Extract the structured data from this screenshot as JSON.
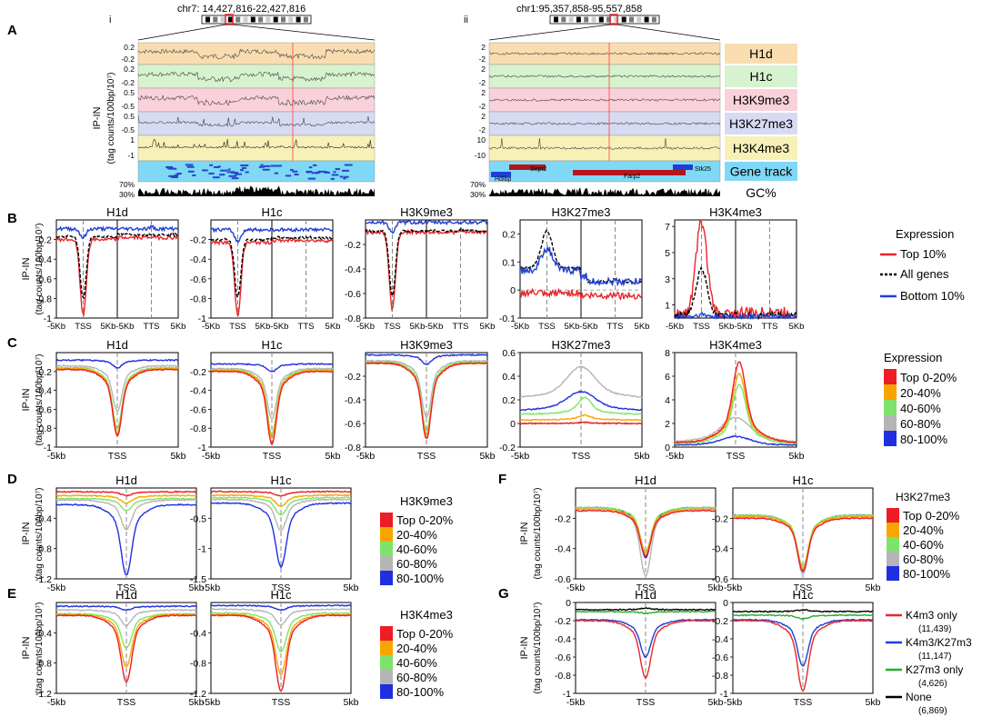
{
  "panel_letters": [
    "A",
    "B",
    "C",
    "D",
    "E",
    "F",
    "G"
  ],
  "panel_a": {
    "sub_i": "i",
    "sub_ii": "ii",
    "coord_i": "chr7: 14,427,816-22,427,816",
    "coord_ii": "chr1:95,357,858-95,557,858",
    "ylabel_line1": "IP-IN",
    "ylabel_line2": "(tag counts/100bp/10⁷)",
    "tracks": [
      {
        "name": "H1d",
        "color": "#f9ddb0",
        "ticks_i": [
          "0.2",
          "-0.2"
        ],
        "ticks_ii": [
          "2",
          "-2"
        ]
      },
      {
        "name": "H1c",
        "color": "#d6f2cf",
        "ticks_i": [
          "0.2",
          "-0.2"
        ],
        "ticks_ii": [
          "2",
          "-2"
        ]
      },
      {
        "name": "H3K9me3",
        "color": "#f9d1db",
        "ticks_i": [
          "0.5",
          "-0.5"
        ],
        "ticks_ii": [
          "2",
          "-2"
        ]
      },
      {
        "name": "H3K27me3",
        "color": "#d7daf2",
        "ticks_i": [
          "0.5",
          "-0.5"
        ],
        "ticks_ii": [
          "2",
          "-2"
        ]
      },
      {
        "name": "H3K4me3",
        "color": "#f7f1b8",
        "ticks_i": [
          "1",
          "-1"
        ],
        "ticks_ii": [
          "10",
          "-10"
        ]
      },
      {
        "name": "Gene track",
        "color": "#7fd8f5",
        "ticks_i": [],
        "ticks_ii": []
      }
    ],
    "gc_label": "GC%",
    "gc_ticks": [
      "70%",
      "30%"
    ],
    "genes_ii": [
      "Sept2",
      "Stk25",
      "Hdlbp",
      "Farp2"
    ]
  },
  "chart_data": [
    {
      "panel": "B",
      "type": "line",
      "xaxis": "metagene",
      "xticks": [
        "-5Kb",
        "TSS",
        "5Kb-5Kb",
        "TTS",
        "5Kb"
      ],
      "ylabel_line1": "IP-IN",
      "ylabel_line2": "(tag counts/100bp/10⁷)",
      "plots": [
        {
          "title": "H1d",
          "ylim": [
            -1,
            0
          ],
          "yticks": [
            "-0.2",
            "-0.4",
            "-0.6",
            "-0.8",
            "-1"
          ],
          "series": [
            {
              "name": "Top 10%",
              "color": "#e8262b",
              "dash": false,
              "baseline": -0.2,
              "dip": -0.97,
              "tts": -0.17,
              "after": -0.18,
              "noise": 0.006
            },
            {
              "name": "All genes",
              "color": "#000",
              "dash": true,
              "baseline": -0.17,
              "dip": -0.8,
              "tts": -0.14,
              "after": -0.15,
              "noise": 0.004
            },
            {
              "name": "Bottom 10%",
              "color": "#1f3fd4",
              "dash": false,
              "baseline": -0.09,
              "dip": -0.18,
              "tts": -0.07,
              "after": -0.09,
              "noise": 0.006
            }
          ]
        },
        {
          "title": "H1c",
          "ylim": [
            -1,
            0
          ],
          "yticks": [
            "-0.2",
            "-0.4",
            "-0.6",
            "-0.8",
            "-1"
          ],
          "series": [
            {
              "name": "Top 10%",
              "color": "#e8262b",
              "dash": false,
              "baseline": -0.23,
              "dip": -0.97,
              "tts": -0.2,
              "after": -0.21,
              "noise": 0.006
            },
            {
              "name": "All genes",
              "color": "#000",
              "dash": true,
              "baseline": -0.2,
              "dip": -0.8,
              "tts": -0.18,
              "after": -0.18,
              "noise": 0.004
            },
            {
              "name": "Bottom 10%",
              "color": "#1f3fd4",
              "dash": false,
              "baseline": -0.1,
              "dip": -0.22,
              "tts": -0.09,
              "after": -0.1,
              "noise": 0.006
            }
          ]
        },
        {
          "title": "H3K9me3",
          "ylim": [
            -0.8,
            0
          ],
          "yticks": [
            "-0.2",
            "-0.4",
            "-0.6",
            "-0.8"
          ],
          "series": [
            {
              "name": "Top 10%",
              "color": "#e8262b",
              "dash": false,
              "baseline": -0.1,
              "dip": -0.73,
              "tts": -0.09,
              "after": -0.1,
              "noise": 0.006
            },
            {
              "name": "All genes",
              "color": "#000",
              "dash": true,
              "baseline": -0.09,
              "dip": -0.62,
              "tts": -0.08,
              "after": -0.09,
              "noise": 0.004
            },
            {
              "name": "Bottom 10%",
              "color": "#1f3fd4",
              "dash": false,
              "baseline": -0.02,
              "dip": -0.1,
              "tts": -0.02,
              "after": -0.02,
              "noise": 0.006
            }
          ]
        },
        {
          "title": "H3K27me3",
          "ylim": [
            -0.1,
            0.25
          ],
          "yticks": [
            "0.2",
            "0.1",
            "0",
            "-0.1"
          ],
          "zero": true,
          "series": [
            {
              "name": "Top 10%",
              "color": "#e8262b",
              "dash": false,
              "baseline": -0.01,
              "dip": -0.02,
              "tts": -0.01,
              "after": -0.02,
              "noise": 0.012
            },
            {
              "name": "All genes",
              "color": "#000",
              "dash": true,
              "baseline": 0.08,
              "dip": 0.21,
              "tts": 0.04,
              "after": 0.03,
              "noise": 0.004,
              "peak": true
            },
            {
              "name": "Bottom 10%",
              "color": "#1f3fd4",
              "dash": false,
              "baseline": 0.07,
              "dip": 0.15,
              "tts": 0.03,
              "after": 0.03,
              "noise": 0.012,
              "peak": true
            }
          ]
        },
        {
          "title": "H3K4me3",
          "ylim": [
            0,
            7.5
          ],
          "yticks": [
            "7",
            "5",
            "3",
            "1"
          ],
          "series": [
            {
              "name": "Top 10%",
              "color": "#e8262b",
              "dash": false,
              "baseline": 0.3,
              "dip": 7.4,
              "tts": 0.6,
              "after": 0.4,
              "noise": 0.02,
              "peak": true
            },
            {
              "name": "All genes",
              "color": "#000",
              "dash": true,
              "baseline": 0.2,
              "dip": 3.8,
              "tts": 0.3,
              "after": 0.2,
              "noise": 0.01,
              "peak": true
            },
            {
              "name": "Bottom 10%",
              "color": "#1f3fd4",
              "dash": false,
              "baseline": 0.08,
              "dip": 0.25,
              "tts": 0.1,
              "after": 0.1,
              "noise": 0.01,
              "peak": true
            }
          ]
        }
      ],
      "legend": {
        "title": "Expression",
        "items": [
          {
            "label": "Top 10%",
            "color": "#e8262b",
            "dash": false
          },
          {
            "label": "All genes",
            "color": "#000",
            "dash": true
          },
          {
            "label": "Bottom 10%",
            "color": "#1f3fd4",
            "dash": false
          }
        ]
      }
    },
    {
      "panel": "C",
      "type": "line",
      "xaxis": "tss",
      "xticks": [
        "-5kb",
        "TSS",
        "5kb"
      ],
      "ylabel_line1": "IP-IN",
      "ylabel_line2": "(tag counts/100bp/10⁷)",
      "plots": [
        {
          "title": "H1d",
          "ylim": [
            -1,
            0
          ],
          "yticks": [
            "-0.2",
            "-0.4",
            "-0.6",
            "-0.8",
            "-1"
          ],
          "vals": [
            [
              -0.18,
              -0.88
            ],
            [
              -0.17,
              -0.85
            ],
            [
              -0.16,
              -0.8
            ],
            [
              -0.14,
              -0.62
            ],
            [
              -0.08,
              -0.16
            ]
          ]
        },
        {
          "title": "H1c",
          "ylim": [
            -1,
            0
          ],
          "yticks": [
            "-0.2",
            "-0.4",
            "-0.6",
            "-0.8",
            "-1"
          ],
          "vals": [
            [
              -0.2,
              -0.97
            ],
            [
              -0.19,
              -0.9
            ],
            [
              -0.18,
              -0.86
            ],
            [
              -0.17,
              -0.7
            ],
            [
              -0.12,
              -0.2
            ]
          ]
        },
        {
          "title": "H3K9me3",
          "ylim": [
            -0.8,
            0
          ],
          "yticks": [
            "-0.2",
            "-0.4",
            "-0.6",
            "-0.8"
          ],
          "vals": [
            [
              -0.09,
              -0.73
            ],
            [
              -0.09,
              -0.7
            ],
            [
              -0.08,
              -0.66
            ],
            [
              -0.07,
              -0.55
            ],
            [
              -0.02,
              -0.1
            ]
          ]
        },
        {
          "title": "H3K27me3",
          "ylim": [
            -0.2,
            0.6
          ],
          "yticks": [
            "0.6",
            "0.4",
            "0.2",
            "0",
            "-0.2"
          ],
          "zero": true,
          "peakmode": true,
          "vals": [
            [
              0.0,
              0.01
            ],
            [
              0.03,
              0.07
            ],
            [
              0.08,
              0.22
            ],
            [
              0.2,
              0.48
            ],
            [
              0.1,
              0.27
            ]
          ]
        },
        {
          "title": "H3K4me3",
          "ylim": [
            0,
            8
          ],
          "yticks": [
            "8",
            "6",
            "4",
            "2",
            "0"
          ],
          "peakmode": true,
          "vals": [
            [
              0.4,
              7.2
            ],
            [
              0.4,
              6.2
            ],
            [
              0.3,
              5.3
            ],
            [
              0.3,
              2.5
            ],
            [
              0.1,
              0.9
            ]
          ]
        }
      ],
      "legend": {
        "title": "Expression",
        "items": [
          "Top 0-20%",
          "20-40%",
          "40-60%",
          "60-80%",
          "80-100%"
        ]
      }
    },
    {
      "panel": "D",
      "type": "line",
      "xaxis": "tss",
      "xticks": [
        "-5kb",
        "TSS",
        "5kb"
      ],
      "ylabel_line1": "IP-IN",
      "ylabel_line2": "(tag counts/100bp/10⁷)",
      "plots": [
        {
          "title": "H1d",
          "ylim": [
            -1.2,
            0
          ],
          "yticks": [
            "-0.4",
            "-0.8",
            "-1.2"
          ],
          "vals": [
            [
              -0.05,
              -0.1
            ],
            [
              -0.1,
              -0.2
            ],
            [
              -0.14,
              -0.3
            ],
            [
              -0.16,
              -0.55
            ],
            [
              -0.22,
              -1.15
            ]
          ]
        },
        {
          "title": "H1c",
          "ylim": [
            -1.5,
            0
          ],
          "yticks": [
            "-0.5",
            "-1",
            "-1.5"
          ],
          "vals": [
            [
              -0.06,
              -0.13
            ],
            [
              -0.12,
              -0.3
            ],
            [
              -0.16,
              -0.45
            ],
            [
              -0.19,
              -0.7
            ],
            [
              -0.25,
              -1.3
            ]
          ]
        }
      ],
      "legend": {
        "title": "H3K9me3",
        "items": [
          "Top 0-20%",
          "20-40%",
          "40-60%",
          "60-80%",
          "80-100%"
        ]
      }
    },
    {
      "panel": "E",
      "type": "line",
      "xaxis": "tss",
      "xticks": [
        "-5kb",
        "TSS",
        "5kb"
      ],
      "ylabel_line1": "IP-IN",
      "ylabel_line2": "(tag counts/100bp/10⁷)",
      "plots": [
        {
          "title": "H1d",
          "ylim": [
            -1.2,
            0
          ],
          "yticks": [
            "-0.4",
            "-0.8",
            "-1.2"
          ],
          "vals": [
            [
              -0.17,
              -1.05
            ],
            [
              -0.16,
              -0.85
            ],
            [
              -0.15,
              -0.6
            ],
            [
              -0.1,
              -0.3
            ],
            [
              -0.05,
              -0.1
            ]
          ]
        },
        {
          "title": "H1c",
          "ylim": [
            -1.2,
            0
          ],
          "yticks": [
            "-0.4",
            "-0.8",
            "-1.2"
          ],
          "vals": [
            [
              -0.17,
              -1.17
            ],
            [
              -0.16,
              -0.95
            ],
            [
              -0.14,
              -0.65
            ],
            [
              -0.09,
              -0.3
            ],
            [
              -0.04,
              -0.1
            ]
          ]
        }
      ],
      "legend": {
        "title": "H3K4me3",
        "items": [
          "Top 0-20%",
          "20-40%",
          "40-60%",
          "60-80%",
          "80-100%"
        ]
      }
    },
    {
      "panel": "F",
      "type": "line",
      "xaxis": "tss",
      "xticks": [
        "-5kb",
        "TSS",
        "5kb"
      ],
      "ylabel_line1": "IP-IN",
      "ylabel_line2": "(tag counts/100bp/10⁷)",
      "plots": [
        {
          "title": "H1d",
          "ylim": [
            -0.6,
            0
          ],
          "yticks": [
            "-0.2",
            "-0.4",
            "-0.6"
          ],
          "vals": [
            [
              -0.15,
              -0.45
            ],
            [
              -0.14,
              -0.43
            ],
            [
              -0.13,
              -0.42
            ],
            [
              -0.13,
              -0.58
            ],
            [
              -0.13,
              -0.46
            ]
          ]
        },
        {
          "title": "H1c",
          "ylim": [
            -0.6,
            0
          ],
          "yticks": [
            "-0.2",
            "-0.4",
            "-0.6"
          ],
          "vals": [
            [
              -0.2,
              -0.55
            ],
            [
              -0.19,
              -0.53
            ],
            [
              -0.18,
              -0.52
            ],
            [
              -0.18,
              -0.57
            ],
            [
              -0.18,
              -0.55
            ]
          ]
        }
      ],
      "legend": {
        "title": "H3K27me3",
        "items": [
          "Top 0-20%",
          "20-40%",
          "40-60%",
          "60-80%",
          "80-100%"
        ]
      }
    },
    {
      "panel": "G",
      "type": "line",
      "xaxis": "tss",
      "xticks": [
        "-5kb",
        "TSS",
        "5kb"
      ],
      "ylabel_line1": "IP-IN",
      "ylabel_line2": "(tag counts/100bp/10⁷)",
      "plots": [
        {
          "title": "H1d",
          "ylim": [
            -1,
            0
          ],
          "yticks": [
            "0",
            "-0.2",
            "-0.4",
            "-0.6",
            "-0.8",
            "-1"
          ],
          "vals4": [
            [
              -0.2,
              -0.83
            ],
            [
              -0.19,
              -0.6
            ],
            [
              -0.1,
              -0.12
            ],
            [
              -0.08,
              -0.06
            ]
          ]
        },
        {
          "title": "H1c",
          "ylim": [
            -1,
            0
          ],
          "yticks": [
            "0",
            "-0.2",
            "-0.4",
            "-0.6",
            "-0.8",
            "-1"
          ],
          "vals4": [
            [
              -0.2,
              -0.97
            ],
            [
              -0.19,
              -0.7
            ],
            [
              -0.14,
              -0.18
            ],
            [
              -0.1,
              -0.08
            ]
          ]
        }
      ],
      "legend": {
        "items": [
          {
            "label": "K4m3 only",
            "count": "(11,439)",
            "color": "#e8262b"
          },
          {
            "label": "K4m3/K27m3",
            "count": "(11,147)",
            "color": "#1f3fd4"
          },
          {
            "label": "K27m3 only",
            "count": "(4,626)",
            "color": "#22b02a"
          },
          {
            "label": "None",
            "count": "(6,869)",
            "color": "#000000"
          }
        ]
      }
    }
  ],
  "quintile_colors": [
    "#ee1c24",
    "#f7a600",
    "#7fe36b",
    "#b5b5b5",
    "#1f2fe0"
  ]
}
